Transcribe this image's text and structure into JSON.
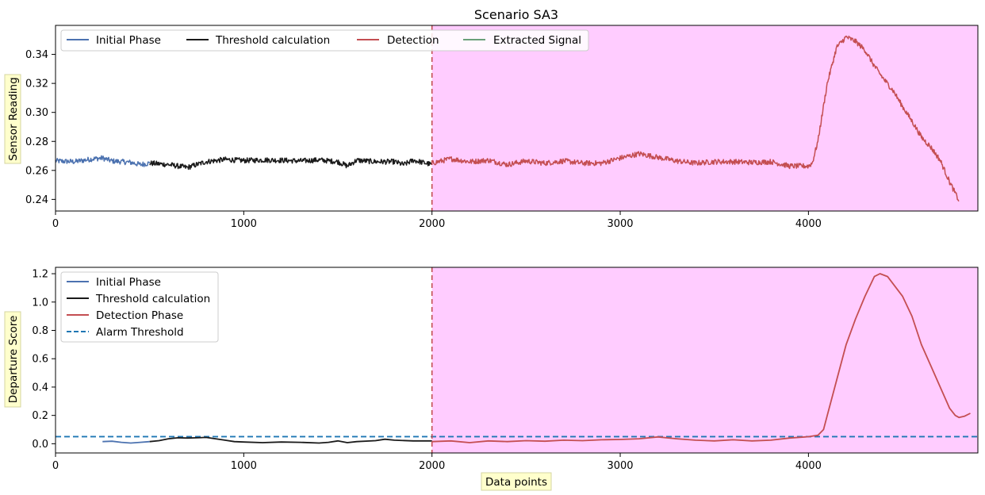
{
  "chart_data": [
    {
      "type": "line",
      "title": "Scenario SA3",
      "xlabel": "",
      "ylabel": "Sensor Reading",
      "xlim": [
        0,
        4900
      ],
      "ylim": [
        0.232,
        0.36
      ],
      "xticks": [
        "0",
        "1000",
        "2000",
        "3000",
        "4000"
      ],
      "yticks": [
        "0.24",
        "0.26",
        "0.28",
        "0.30",
        "0.32",
        "0.34"
      ],
      "legend_position": "top-left, single row",
      "detection_region": {
        "x_start": 2000,
        "x_end": 4900,
        "color": "#ffccff"
      },
      "change_point_x": 2000,
      "series": [
        {
          "name": "Initial Phase",
          "color": "#4c72b0",
          "x_range": [
            0,
            500
          ],
          "points": [
            [
              0,
              0.2665
            ],
            [
              100,
              0.266
            ],
            [
              200,
              0.268
            ],
            [
              250,
              0.2685
            ],
            [
              300,
              0.2665
            ],
            [
              400,
              0.2655
            ],
            [
              450,
              0.264
            ],
            [
              500,
              0.265
            ]
          ]
        },
        {
          "name": "Threshold calculation",
          "color": "#1a1a1a",
          "x_range": [
            500,
            2000
          ],
          "points": [
            [
              500,
              0.265
            ],
            [
              600,
              0.264
            ],
            [
              700,
              0.262
            ],
            [
              800,
              0.266
            ],
            [
              900,
              0.2675
            ],
            [
              1000,
              0.2668
            ],
            [
              1100,
              0.2672
            ],
            [
              1200,
              0.267
            ],
            [
              1300,
              0.2665
            ],
            [
              1400,
              0.2672
            ],
            [
              1500,
              0.266
            ],
            [
              1550,
              0.263
            ],
            [
              1600,
              0.267
            ],
            [
              1700,
              0.266
            ],
            [
              1800,
              0.266
            ],
            [
              1850,
              0.264
            ],
            [
              1900,
              0.267
            ],
            [
              2000,
              0.264
            ]
          ]
        },
        {
          "name": "Detection",
          "color": "#c44e52",
          "x_range": [
            2000,
            4800
          ],
          "points": [
            [
              2000,
              0.265
            ],
            [
              2100,
              0.268
            ],
            [
              2200,
              0.266
            ],
            [
              2300,
              0.267
            ],
            [
              2400,
              0.264
            ],
            [
              2500,
              0.2665
            ],
            [
              2600,
              0.265
            ],
            [
              2700,
              0.2665
            ],
            [
              2800,
              0.265
            ],
            [
              2900,
              0.265
            ],
            [
              3000,
              0.2685
            ],
            [
              3100,
              0.2715
            ],
            [
              3200,
              0.269
            ],
            [
              3300,
              0.2665
            ],
            [
              3400,
              0.265
            ],
            [
              3500,
              0.266
            ],
            [
              3600,
              0.266
            ],
            [
              3700,
              0.2655
            ],
            [
              3800,
              0.266
            ],
            [
              3900,
              0.263
            ],
            [
              4000,
              0.263
            ],
            [
              4020,
              0.265
            ],
            [
              4050,
              0.28
            ],
            [
              4100,
              0.32
            ],
            [
              4150,
              0.345
            ],
            [
              4200,
              0.352
            ],
            [
              4250,
              0.349
            ],
            [
              4300,
              0.343
            ],
            [
              4350,
              0.332
            ],
            [
              4400,
              0.323
            ],
            [
              4450,
              0.315
            ],
            [
              4500,
              0.304
            ],
            [
              4550,
              0.294
            ],
            [
              4600,
              0.283
            ],
            [
              4650,
              0.276
            ],
            [
              4700,
              0.267
            ],
            [
              4750,
              0.252
            ],
            [
              4800,
              0.239
            ]
          ]
        },
        {
          "name": "Extracted Signal",
          "color": "#6aa07a",
          "x_range": null,
          "points": []
        }
      ]
    },
    {
      "type": "line",
      "title": "",
      "xlabel": "Data points",
      "ylabel": "Departure Score",
      "xlim": [
        0,
        4900
      ],
      "ylim": [
        -0.065,
        1.245
      ],
      "xticks": [
        "0",
        "1000",
        "2000",
        "3000",
        "4000"
      ],
      "yticks": [
        "0.0",
        "0.2",
        "0.4",
        "0.6",
        "0.8",
        "1.0",
        "1.2"
      ],
      "legend_position": "top-left",
      "detection_region": {
        "x_start": 2000,
        "x_end": 4900,
        "color": "#ffccff"
      },
      "change_point_x": 2000,
      "alarm_threshold": 0.05,
      "series": [
        {
          "name": "Initial Phase",
          "color": "#4c72b0",
          "points": [
            [
              250,
              0.015
            ],
            [
              300,
              0.018
            ],
            [
              350,
              0.01
            ],
            [
              400,
              0.005
            ],
            [
              450,
              0.01
            ],
            [
              500,
              0.015
            ]
          ]
        },
        {
          "name": "Threshold calculation",
          "color": "#1a1a1a",
          "points": [
            [
              500,
              0.015
            ],
            [
              550,
              0.022
            ],
            [
              600,
              0.035
            ],
            [
              650,
              0.042
            ],
            [
              700,
              0.04
            ],
            [
              750,
              0.042
            ],
            [
              800,
              0.045
            ],
            [
              850,
              0.035
            ],
            [
              900,
              0.025
            ],
            [
              950,
              0.015
            ],
            [
              1000,
              0.012
            ],
            [
              1100,
              0.008
            ],
            [
              1200,
              0.012
            ],
            [
              1300,
              0.01
            ],
            [
              1400,
              0.005
            ],
            [
              1450,
              0.01
            ],
            [
              1500,
              0.02
            ],
            [
              1550,
              0.008
            ],
            [
              1600,
              0.015
            ],
            [
              1700,
              0.022
            ],
            [
              1750,
              0.032
            ],
            [
              1800,
              0.025
            ],
            [
              1900,
              0.02
            ],
            [
              2000,
              0.02
            ]
          ]
        },
        {
          "name": "Detection Phase",
          "color": "#c44e52",
          "points": [
            [
              2000,
              0.015
            ],
            [
              2100,
              0.02
            ],
            [
              2200,
              0.008
            ],
            [
              2300,
              0.02
            ],
            [
              2400,
              0.015
            ],
            [
              2500,
              0.022
            ],
            [
              2600,
              0.018
            ],
            [
              2700,
              0.025
            ],
            [
              2800,
              0.022
            ],
            [
              2900,
              0.028
            ],
            [
              3000,
              0.03
            ],
            [
              3100,
              0.035
            ],
            [
              3200,
              0.048
            ],
            [
              3300,
              0.035
            ],
            [
              3400,
              0.025
            ],
            [
              3500,
              0.02
            ],
            [
              3600,
              0.028
            ],
            [
              3700,
              0.02
            ],
            [
              3800,
              0.025
            ],
            [
              3900,
              0.04
            ],
            [
              4000,
              0.05
            ],
            [
              4050,
              0.06
            ],
            [
              4080,
              0.1
            ],
            [
              4100,
              0.2
            ],
            [
              4150,
              0.45
            ],
            [
              4200,
              0.7
            ],
            [
              4250,
              0.88
            ],
            [
              4300,
              1.04
            ],
            [
              4350,
              1.18
            ],
            [
              4380,
              1.2
            ],
            [
              4420,
              1.18
            ],
            [
              4500,
              1.04
            ],
            [
              4550,
              0.9
            ],
            [
              4600,
              0.7
            ],
            [
              4650,
              0.55
            ],
            [
              4700,
              0.4
            ],
            [
              4750,
              0.25
            ],
            [
              4780,
              0.2
            ],
            [
              4800,
              0.185
            ],
            [
              4830,
              0.195
            ],
            [
              4860,
              0.215
            ]
          ]
        },
        {
          "name": "Alarm Threshold",
          "color": "#1f77b4",
          "style": "dashed",
          "points": []
        }
      ]
    }
  ]
}
